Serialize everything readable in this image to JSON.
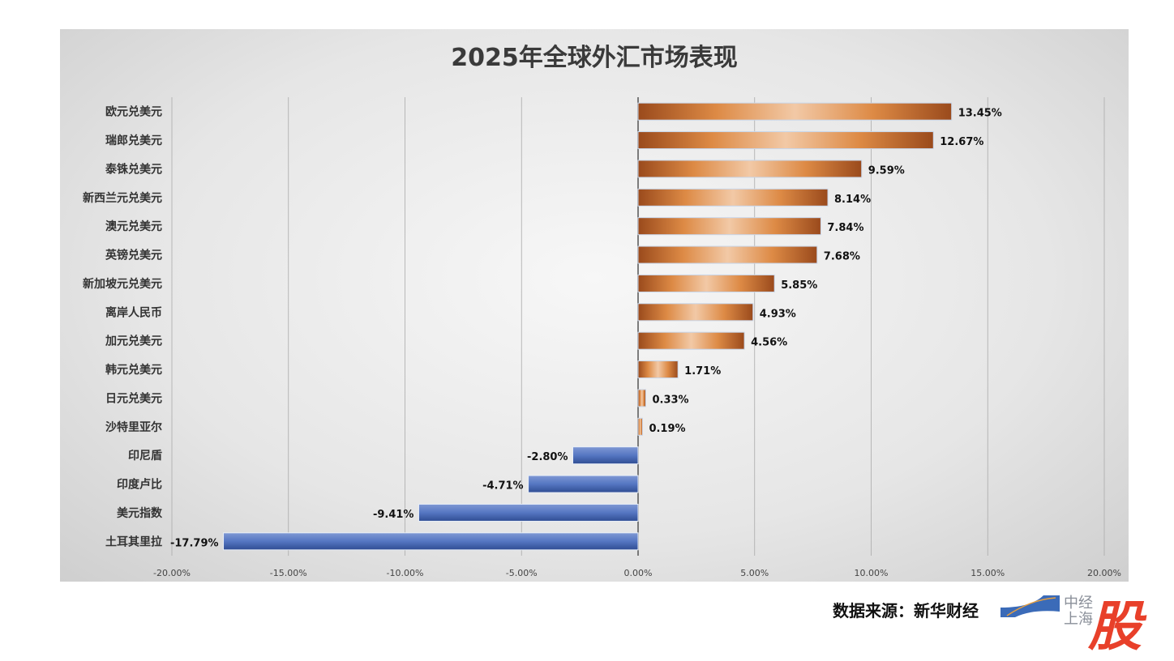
{
  "chart_data": {
    "type": "bar",
    "orientation": "horizontal",
    "title": "2025年全球外汇市场表现",
    "categories": [
      "欧元兑美元",
      "瑞郎兑美元",
      "泰铢兑美元",
      "新西兰元兑美元",
      "澳元兑美元",
      "英镑兑美元",
      "新加坡元兑美元",
      "离岸人民币",
      "加元兑美元",
      "韩元兑美元",
      "日元兑美元",
      "沙特里亚尔",
      "印尼盾",
      "印度卢比",
      "美元指数",
      "土耳其里拉"
    ],
    "values": [
      13.45,
      12.67,
      9.59,
      8.14,
      7.84,
      7.68,
      5.85,
      4.93,
      4.56,
      1.71,
      0.33,
      0.19,
      -2.8,
      -4.71,
      -9.41,
      -17.79
    ],
    "data_labels": [
      "13.45%",
      "12.67%",
      "9.59%",
      "8.14%",
      "7.84%",
      "7.68%",
      "5.85%",
      "4.93%",
      "4.56%",
      "1.71%",
      "0.33%",
      "0.19%",
      "-2.80%",
      "-4.71%",
      "-9.41%",
      "-17.79%"
    ],
    "xlim": [
      -20,
      20
    ],
    "x_ticks": [
      "-20.00%",
      "-15.00%",
      "-10.00%",
      "-5.00%",
      "0.00%",
      "5.00%",
      "10.00%",
      "15.00%",
      "20.00%"
    ],
    "x_tick_values": [
      -20,
      -15,
      -10,
      -5,
      0,
      5,
      10,
      15,
      20
    ],
    "grid": "vertical",
    "legend": "none",
    "colors": {
      "positive": "#d9833f",
      "positive_edge": "#9a4a1c",
      "negative": "#4a6cb5"
    }
  },
  "footer": {
    "source": "数据来源：新华财经",
    "logo_line1": "中经",
    "logo_line2": "上海",
    "logo_mark": "股"
  }
}
